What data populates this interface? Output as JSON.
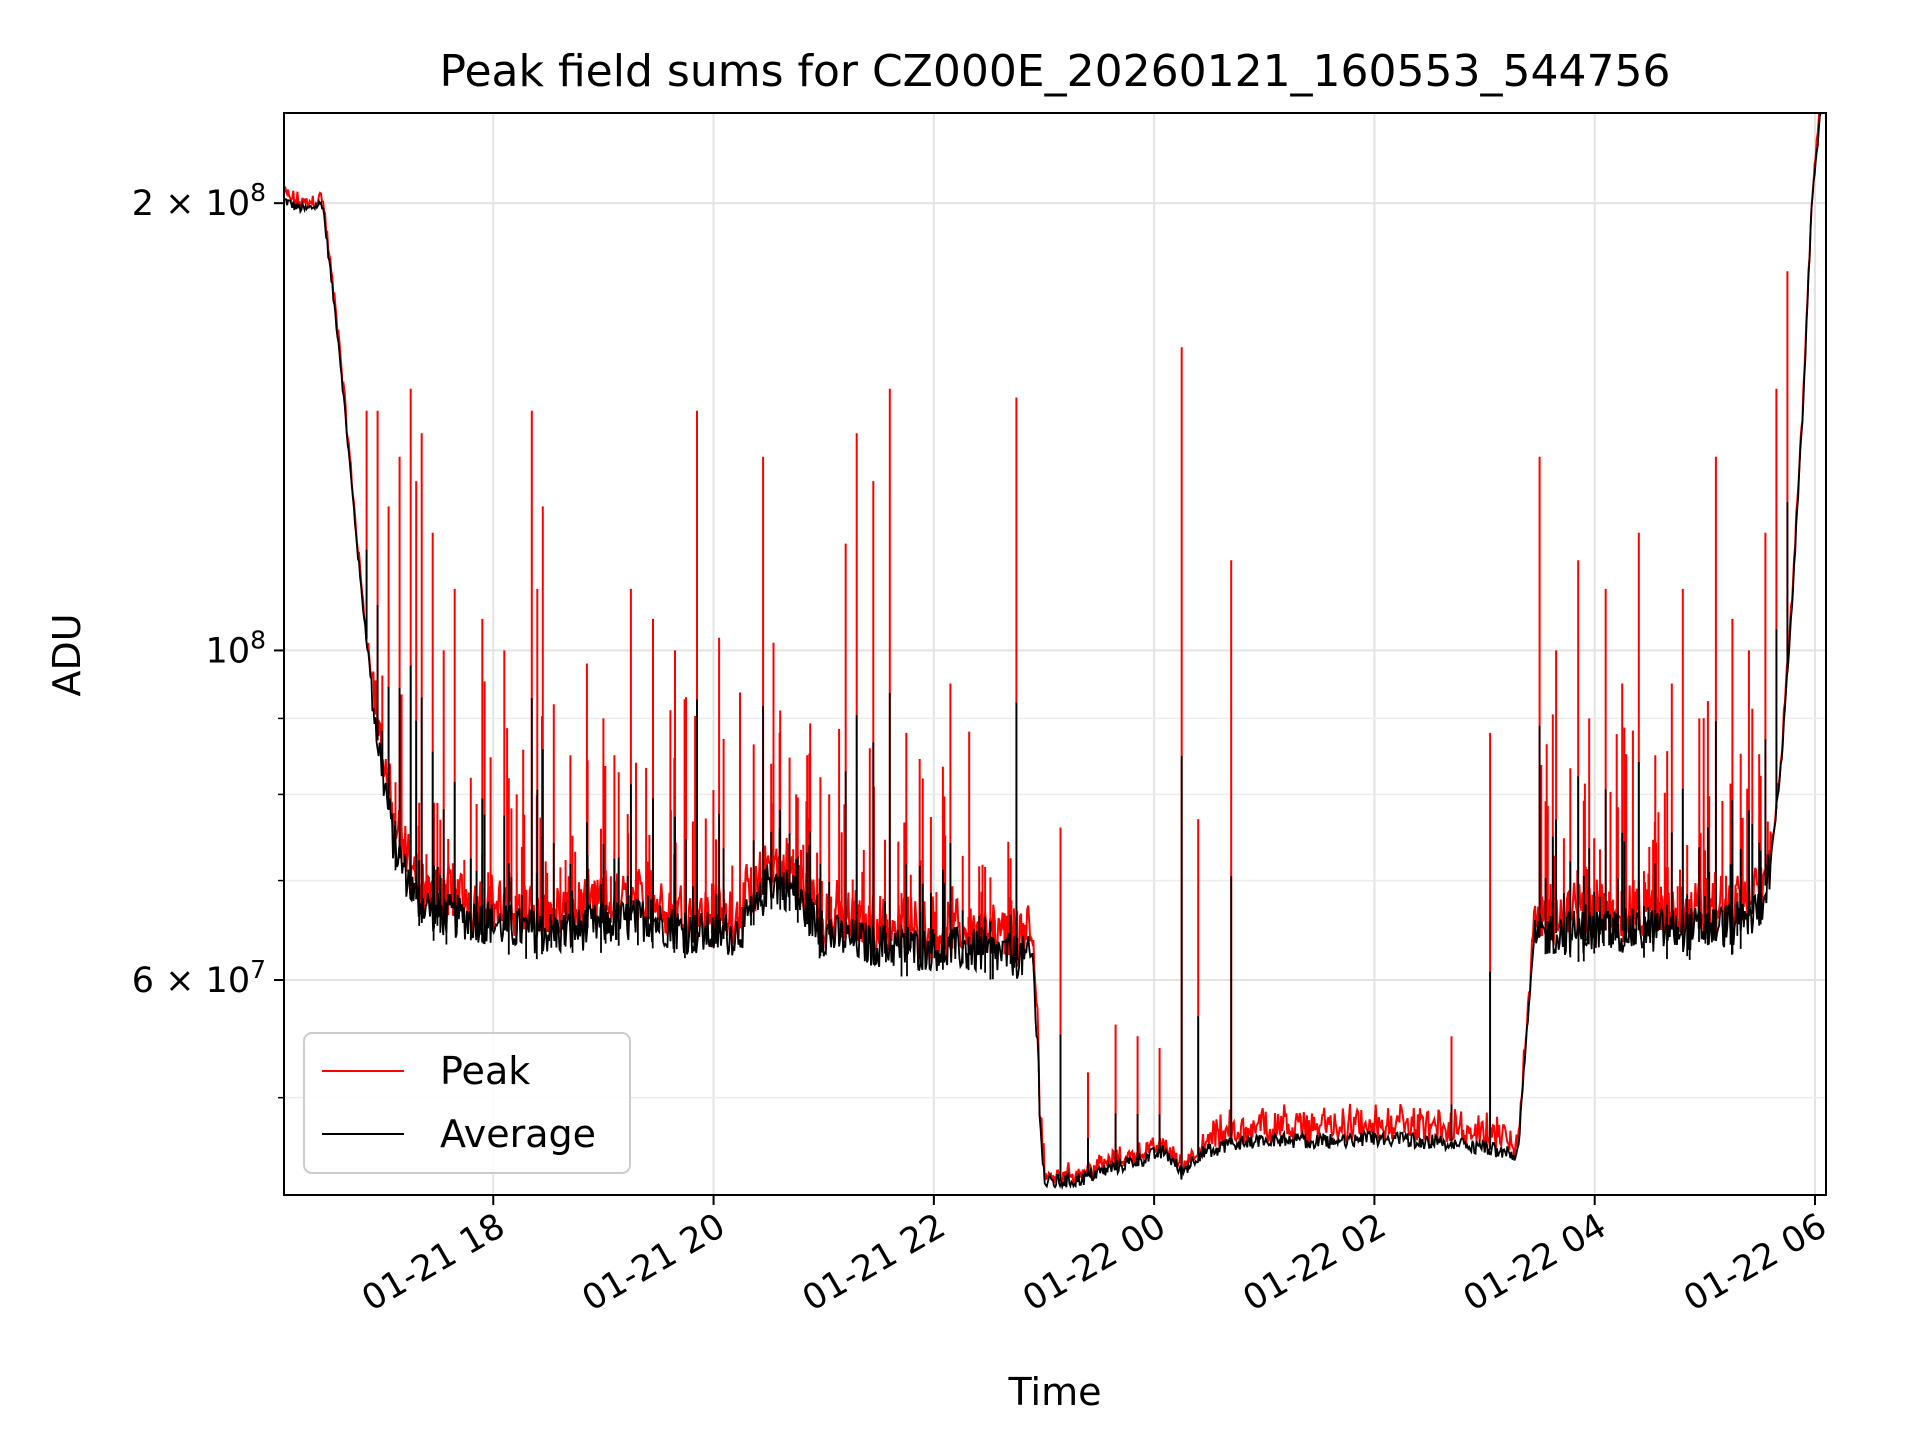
{
  "chart_data": {
    "type": "line",
    "title": "Peak field sums for CZ000E_20260121_160553_544756",
    "xlabel": "Time",
    "ylabel": "ADU",
    "yscale": "log",
    "ylim": [
      43000000,
      230000000
    ],
    "xlim_hours": [
      16.1,
      30.1
    ],
    "grid": true,
    "x_ticks": [
      {
        "label": "01-21 18",
        "hour": 18
      },
      {
        "label": "01-21 20",
        "hour": 20
      },
      {
        "label": "01-21 22",
        "hour": 22
      },
      {
        "label": "01-22 00",
        "hour": 24
      },
      {
        "label": "01-22 02",
        "hour": 26
      },
      {
        "label": "01-22 04",
        "hour": 28
      },
      {
        "label": "01-22 06",
        "hour": 30
      }
    ],
    "y_ticks": [
      {
        "mantissa": "6",
        "exponent": "7",
        "value": 60000000
      },
      {
        "mantissa": "",
        "exponent": "8",
        "value": 100000000
      },
      {
        "mantissa": "2",
        "exponent": "8",
        "value": 200000000
      }
    ],
    "y_minor_ticks": [
      50000000,
      70000000,
      80000000,
      90000000
    ],
    "legend": {
      "position": "lower-left",
      "entries": [
        {
          "label": "Peak",
          "color": "#ff0000"
        },
        {
          "label": "Average",
          "color": "#000000"
        }
      ]
    },
    "series": [
      {
        "name": "Average",
        "color": "#000000",
        "hours": [
          16.1,
          16.2,
          16.3,
          16.45,
          16.6,
          16.8,
          16.95,
          17.1,
          17.3,
          17.5,
          17.8,
          18.2,
          18.6,
          19.0,
          19.4,
          19.8,
          20.2,
          20.4,
          20.5,
          20.7,
          21.0,
          21.4,
          21.8,
          22.2,
          22.6,
          22.9,
          23.0,
          23.3,
          23.6,
          23.9,
          24.1,
          24.25,
          24.4,
          24.7,
          25.0,
          25.5,
          26.0,
          26.5,
          27.0,
          27.3,
          27.45,
          27.6,
          28.0,
          28.5,
          29.0,
          29.3,
          29.5,
          29.6,
          29.7,
          29.8,
          29.9,
          29.97,
          30.05
        ],
        "values": [
          201000000,
          199000000,
          198000000,
          200000000,
          160000000,
          110000000,
          87000000,
          74000000,
          68000000,
          66500000,
          66000000,
          65000000,
          64500000,
          65500000,
          66000000,
          64500000,
          64500000,
          67000000,
          70000000,
          69000000,
          64500000,
          63500000,
          63000000,
          63000000,
          62500000,
          62000000,
          43800000,
          44000000,
          44800000,
          45500000,
          46000000,
          44500000,
          45800000,
          46500000,
          46800000,
          46800000,
          46900000,
          46700000,
          46200000,
          45800000,
          64000000,
          64500000,
          64800000,
          64800000,
          65000000,
          65500000,
          67000000,
          72000000,
          85000000,
          110000000,
          150000000,
          200000000,
          230000000
        ]
      },
      {
        "name": "Peak",
        "color": "#ff0000",
        "spike_hours": [
          16.85,
          16.95,
          17.05,
          17.15,
          17.25,
          17.3,
          17.35,
          17.45,
          17.55,
          17.65,
          17.9,
          18.1,
          18.35,
          18.4,
          18.45,
          18.55,
          18.7,
          18.85,
          19.0,
          19.1,
          19.25,
          19.45,
          19.65,
          19.75,
          19.85,
          20.05,
          20.45,
          20.6,
          20.75,
          20.85,
          21.05,
          21.2,
          21.3,
          21.45,
          21.6,
          21.75,
          21.9,
          22.15,
          22.75,
          23.15,
          23.4,
          23.65,
          23.85,
          24.05,
          24.25,
          24.4,
          24.7,
          26.7,
          27.05,
          27.5,
          27.65,
          27.85,
          27.95,
          28.1,
          28.25,
          28.4,
          28.55,
          28.7,
          28.8,
          28.95,
          29.1,
          29.25,
          29.4,
          29.55,
          29.65,
          29.75
        ],
        "spike_values": [
          145000000,
          145000000,
          125000000,
          135000000,
          150000000,
          130000000,
          140000000,
          120000000,
          100000000,
          110000000,
          105000000,
          100000000,
          145000000,
          110000000,
          125000000,
          92000000,
          85000000,
          98000000,
          90000000,
          85000000,
          110000000,
          105000000,
          100000000,
          93000000,
          145000000,
          102000000,
          135000000,
          88000000,
          80000000,
          85000000,
          80000000,
          118000000,
          140000000,
          130000000,
          150000000,
          88000000,
          82000000,
          95000000,
          148000000,
          76000000,
          52000000,
          56000000,
          55000000,
          54000000,
          160000000,
          77000000,
          115000000,
          55000000,
          88000000,
          135000000,
          100000000,
          115000000,
          90000000,
          110000000,
          95000000,
          120000000,
          85000000,
          95000000,
          110000000,
          90000000,
          135000000,
          105000000,
          100000000,
          120000000,
          150000000,
          180000000
        ]
      }
    ]
  }
}
